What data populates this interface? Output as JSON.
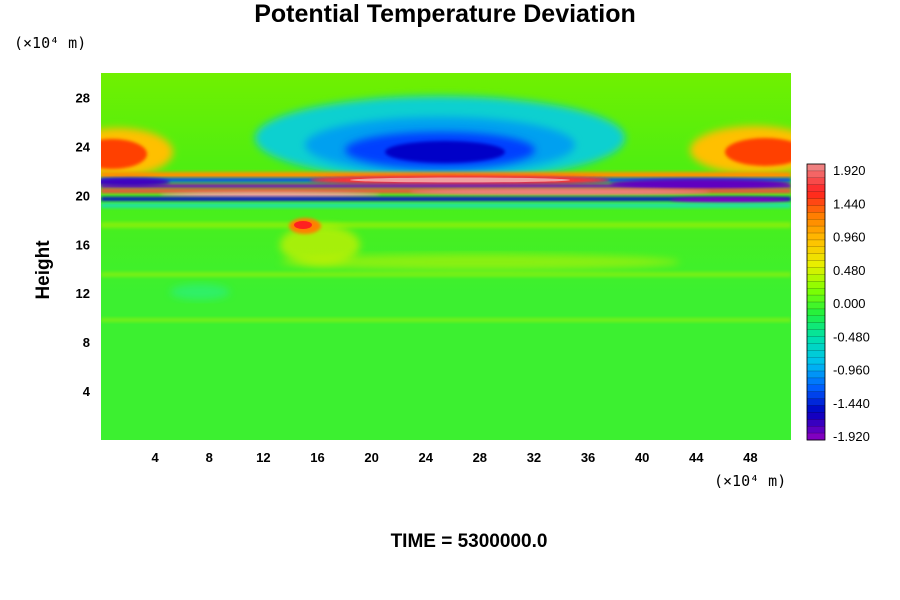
{
  "chart_data": {
    "type": "heatmap",
    "title": "Potential Temperature Deviation",
    "ylabel": "Height",
    "x_unit": "(×10⁴ m)",
    "y_unit": "(×10⁴ m)",
    "time_label": "TIME = 5300000.0",
    "xlim": [
      0,
      51
    ],
    "ylim": [
      0,
      30
    ],
    "x_ticks": [
      4,
      8,
      12,
      16,
      20,
      24,
      28,
      32,
      36,
      40,
      44,
      48
    ],
    "y_ticks": [
      4,
      8,
      12,
      16,
      20,
      24,
      28
    ],
    "colorbar": {
      "ticks": [
        "1.920",
        "1.440",
        "0.960",
        "0.480",
        "0.000",
        "-0.480",
        "-0.960",
        "-1.440",
        "-1.920"
      ],
      "range": [
        -1.92,
        1.92
      ],
      "colors_top_to_bottom": [
        "#f08080",
        "#ff2020",
        "#ff8000",
        "#ffc000",
        "#e8f000",
        "#80ff00",
        "#20f040",
        "#00e0b0",
        "#00c0f0",
        "#0060ff",
        "#0000c0",
        "#8000c0"
      ]
    },
    "features": [
      {
        "label": "cold anomaly",
        "x": [
          18,
          32
        ],
        "y": [
          22,
          25
        ],
        "value": -1.9
      },
      {
        "label": "warm anomaly left",
        "x": [
          0,
          6
        ],
        "y": [
          21.5,
          25
        ],
        "value": 1.4
      },
      {
        "label": "warm anomaly right",
        "x": [
          44,
          51
        ],
        "y": [
          21.5,
          25
        ],
        "value": 1.4
      },
      {
        "label": "warm band",
        "x": [
          17,
          38
        ],
        "y": [
          21,
          22.2
        ],
        "value": 1.9
      },
      {
        "label": "warm patch",
        "x": [
          13.5,
          17
        ],
        "y": [
          17,
          18
        ],
        "value": 1.9
      }
    ]
  }
}
